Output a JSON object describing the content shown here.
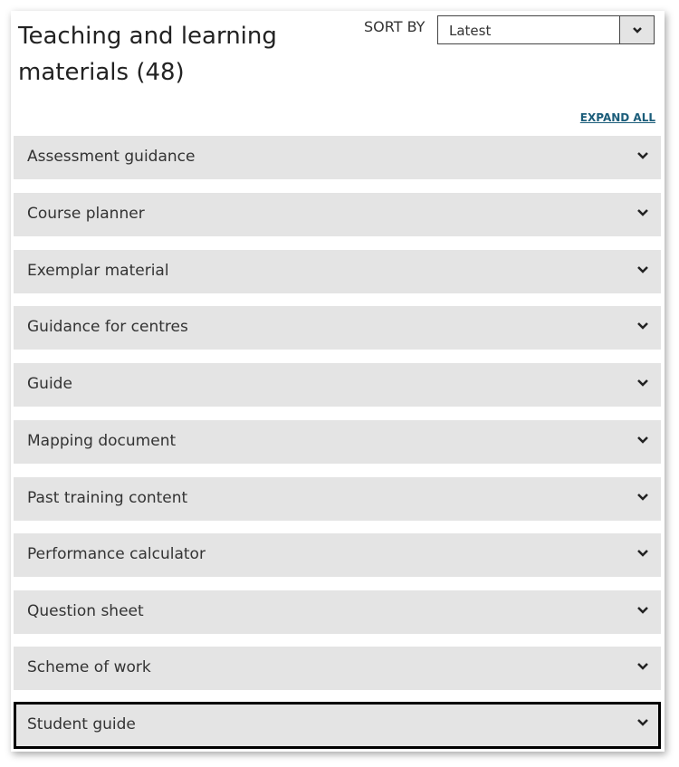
{
  "header": {
    "title": "Teaching and learning materials (48)",
    "sort_label": "SORT BY",
    "sort_value": "Latest",
    "expand_all": "EXPAND ALL"
  },
  "items": [
    {
      "label": "Assessment guidance"
    },
    {
      "label": "Course planner"
    },
    {
      "label": "Exemplar material"
    },
    {
      "label": "Guidance for centres"
    },
    {
      "label": "Guide"
    },
    {
      "label": "Mapping document"
    },
    {
      "label": "Past training content"
    },
    {
      "label": "Performance calculator"
    },
    {
      "label": "Question sheet"
    },
    {
      "label": "Scheme of work"
    },
    {
      "label": "Student guide",
      "focused": true
    }
  ],
  "colors": {
    "accordion_bg": "#e4e4e4",
    "link": "#1b5d7a"
  }
}
